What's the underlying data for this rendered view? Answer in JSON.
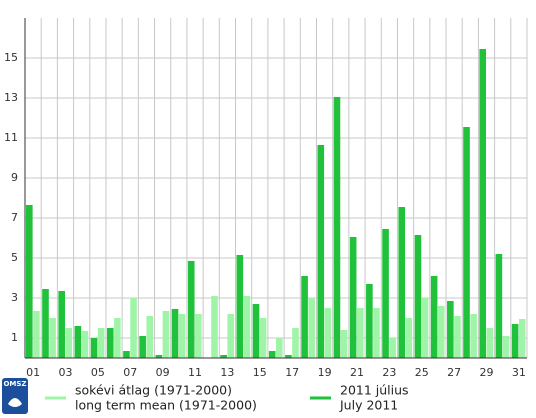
{
  "chart_data": {
    "type": "bar",
    "categories": [
      "01",
      null,
      "03",
      null,
      "05",
      null,
      "07",
      null,
      "09",
      null,
      "11",
      null,
      "13",
      null,
      "15",
      null,
      "17",
      null,
      "19",
      null,
      "21",
      null,
      "23",
      null,
      "25",
      null,
      "27",
      null,
      "29",
      null,
      "31"
    ],
    "series": [
      {
        "name": "2011 július",
        "subname": "July 2011",
        "color": "#1fc23a",
        "values": [
          7.65,
          3.45,
          3.35,
          1.6,
          1.0,
          1.5,
          0.35,
          1.1,
          0.15,
          2.45,
          4.85,
          0,
          0.15,
          5.15,
          2.7,
          0.35,
          0.15,
          4.1,
          10.65,
          13.05,
          6.05,
          3.7,
          6.45,
          7.55,
          6.15,
          4.1,
          2.85,
          11.55,
          15.45,
          5.2,
          1.7
        ]
      },
      {
        "name": "sokévi átlag (1971-2000)",
        "subname": "long term mean (1971-2000)",
        "color": "#a0f4a8",
        "values": [
          2.35,
          2.0,
          1.5,
          1.35,
          1.5,
          2.0,
          3.0,
          2.1,
          2.35,
          2.2,
          2.2,
          3.1,
          2.2,
          3.1,
          2.0,
          1.0,
          1.5,
          3.0,
          2.5,
          1.4,
          2.5,
          2.5,
          1.0,
          2.0,
          3.0,
          2.6,
          2.1,
          2.2,
          1.5,
          1.1,
          1.95
        ]
      }
    ],
    "ylim": [
      0,
      17
    ],
    "yticks": [
      1,
      3,
      5,
      7,
      9,
      11,
      13,
      15
    ],
    "grid": true,
    "logo": "OMSZ"
  }
}
